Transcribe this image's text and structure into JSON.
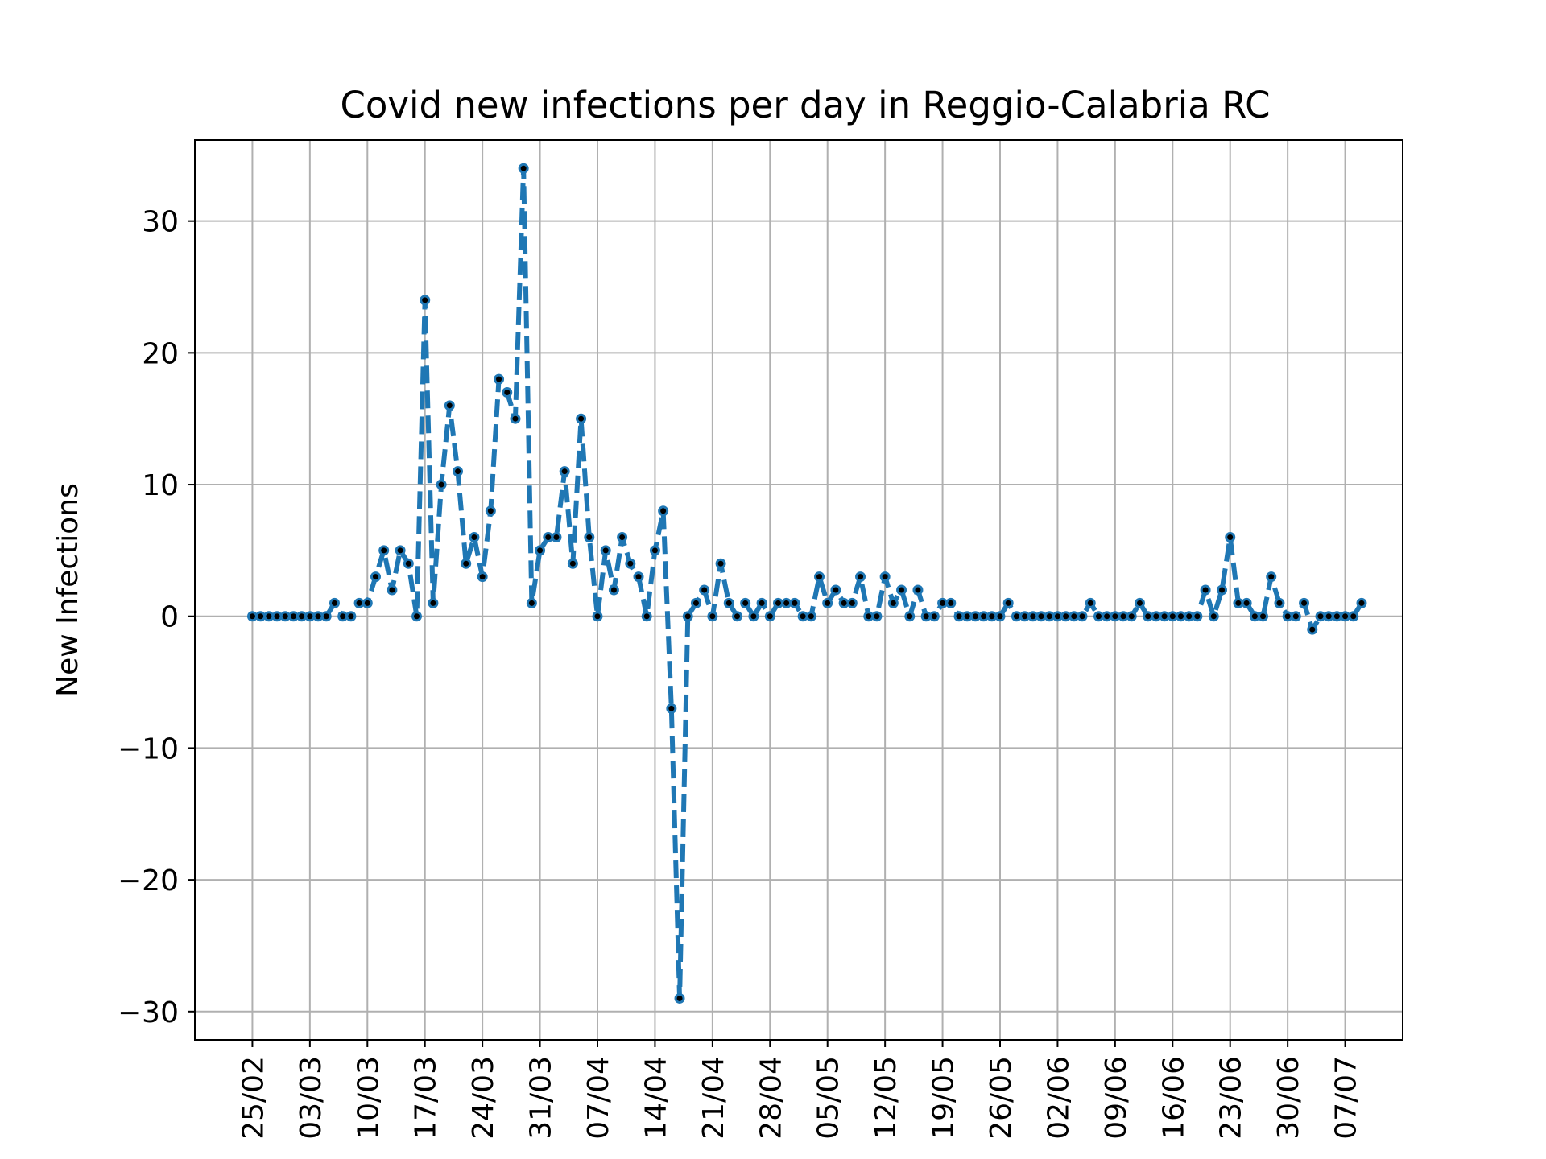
{
  "chart_data": {
    "type": "line",
    "title": "Covid new infections per day in Reggio-Calabria RC",
    "xlabel": "",
    "ylabel": "New Infections",
    "x_start": "25/02",
    "x_end": "07/07",
    "xtick_labels": [
      "25/02",
      "03/03",
      "10/03",
      "17/03",
      "24/03",
      "31/03",
      "07/04",
      "14/04",
      "21/04",
      "28/04",
      "05/05",
      "12/05",
      "19/05",
      "26/05",
      "02/06",
      "09/06",
      "16/06",
      "23/06",
      "30/06",
      "07/07"
    ],
    "ytick_values": [
      -30,
      -20,
      -10,
      0,
      10,
      20,
      30
    ],
    "ytick_labels": [
      "−30",
      "−20",
      "−10",
      "0",
      "10",
      "20",
      "30"
    ],
    "ylim": [
      -32.15,
      36.15
    ],
    "xlim": [
      "18/02",
      "14/07"
    ],
    "grid": true,
    "line_style": "dashed",
    "marker": "dot",
    "series": [
      {
        "color": "#1f77b4",
        "marker_color": "#000000",
        "values": [
          0,
          0,
          0,
          0,
          0,
          0,
          0,
          0,
          0,
          0,
          1,
          0,
          0,
          1,
          1,
          3,
          5,
          2,
          5,
          4,
          0,
          24,
          1,
          10,
          16,
          11,
          4,
          6,
          3,
          8,
          18,
          17,
          15,
          34,
          1,
          5,
          6,
          6,
          11,
          4,
          15,
          6,
          0,
          5,
          2,
          6,
          4,
          3,
          0,
          5,
          8,
          -7,
          -29,
          0,
          1,
          2,
          0,
          4,
          1,
          0,
          1,
          0,
          1,
          0,
          1,
          1,
          1,
          0,
          0,
          3,
          1,
          2,
          1,
          1,
          3,
          0,
          0,
          3,
          1,
          2,
          0,
          2,
          0,
          0,
          1,
          1,
          0,
          0,
          0,
          0,
          0,
          0,
          1,
          0,
          0,
          0,
          0,
          0,
          0,
          0,
          0,
          0,
          1,
          0,
          0,
          0,
          0,
          0,
          1,
          0,
          0,
          0,
          0,
          0,
          0,
          0,
          2,
          0,
          2,
          6,
          1,
          1,
          0,
          0,
          3,
          1,
          0,
          0,
          1,
          -1,
          0,
          0,
          0,
          0,
          0,
          1
        ]
      }
    ]
  }
}
